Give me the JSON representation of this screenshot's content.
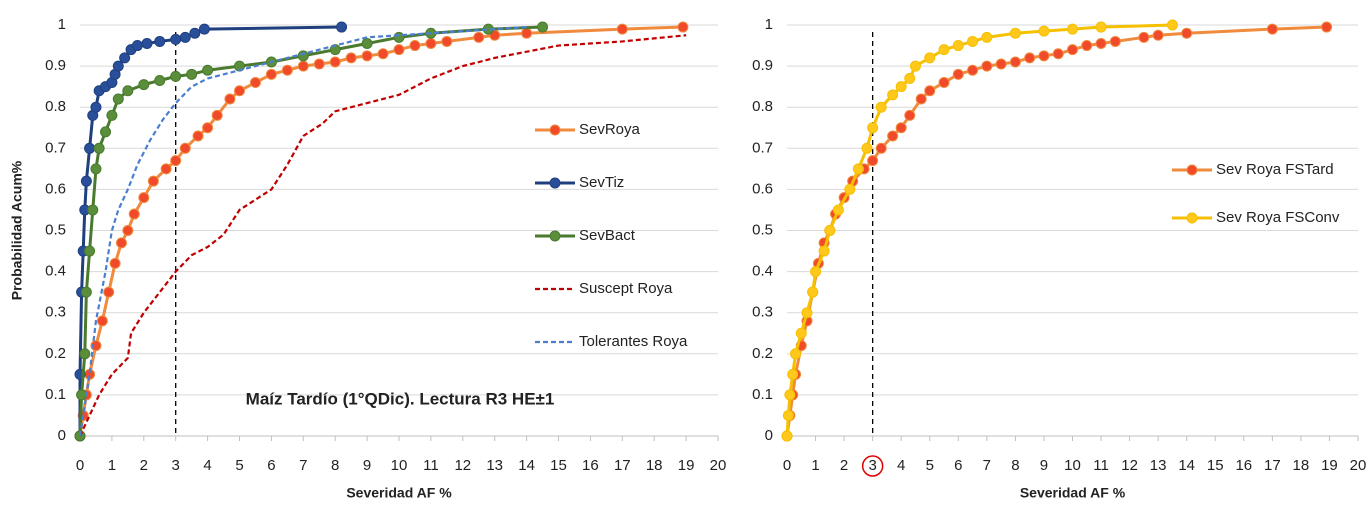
{
  "chart_data": [
    {
      "type": "line",
      "x_label": "Severidad AF %",
      "y_label": "Probabilidad Acum%",
      "annotation": "Maíz Tardío (1°QDic). Lectura R3 HE±1",
      "reference_line_x": 3,
      "grid": true,
      "legend": "right",
      "xlim": [
        0,
        20
      ],
      "xticks": [
        0,
        1,
        2,
        3,
        4,
        5,
        6,
        7,
        8,
        9,
        10,
        11,
        12,
        13,
        14,
        15,
        16,
        17,
        18,
        19,
        20
      ],
      "ylim": [
        0,
        1
      ],
      "yticks": [
        0,
        0.1,
        0.2,
        0.3,
        0.4,
        0.5,
        0.6,
        0.7,
        0.8,
        0.9,
        1
      ],
      "series": [
        {
          "name": "SevRoya",
          "color": "#f08a3c",
          "marker_color": "#f04a2a",
          "line_style": "solid",
          "x": [
            0,
            0.1,
            0.2,
            0.3,
            0.5,
            0.7,
            0.9,
            1.1,
            1.3,
            1.5,
            1.7,
            2,
            2.3,
            2.7,
            3,
            3.3,
            3.7,
            4,
            4.3,
            4.7,
            5,
            5.5,
            6,
            6.5,
            7,
            7.5,
            8,
            8.5,
            9,
            9.5,
            10,
            10.5,
            11,
            11.5,
            12.5,
            13,
            14,
            17,
            18.9
          ],
          "values": [
            0,
            0.05,
            0.1,
            0.15,
            0.22,
            0.28,
            0.35,
            0.42,
            0.47,
            0.5,
            0.54,
            0.58,
            0.62,
            0.65,
            0.67,
            0.7,
            0.73,
            0.75,
            0.78,
            0.82,
            0.84,
            0.86,
            0.88,
            0.89,
            0.9,
            0.905,
            0.91,
            0.92,
            0.925,
            0.93,
            0.94,
            0.95,
            0.955,
            0.96,
            0.97,
            0.975,
            0.98,
            0.99,
            0.995
          ]
        },
        {
          "name": "SevTiz",
          "color": "#1f3f7f",
          "marker_color": "#2a4f9a",
          "line_style": "solid",
          "x": [
            0,
            0,
            0.05,
            0.1,
            0.15,
            0.2,
            0.3,
            0.4,
            0.5,
            0.6,
            0.8,
            1,
            1.1,
            1.2,
            1.4,
            1.6,
            1.8,
            2.1,
            2.5,
            3,
            3.3,
            3.6,
            3.9,
            8.2
          ],
          "values": [
            0,
            0.15,
            0.35,
            0.45,
            0.55,
            0.62,
            0.7,
            0.78,
            0.8,
            0.84,
            0.85,
            0.86,
            0.88,
            0.9,
            0.92,
            0.94,
            0.95,
            0.955,
            0.96,
            0.965,
            0.97,
            0.98,
            0.99,
            0.995
          ]
        },
        {
          "name": "SevBact",
          "color": "#4a7a2e",
          "marker_color": "#5a8e3a",
          "line_style": "solid",
          "x": [
            0,
            0.05,
            0.15,
            0.2,
            0.3,
            0.4,
            0.5,
            0.6,
            0.8,
            1,
            1.2,
            1.5,
            2,
            2.5,
            3,
            3.5,
            4,
            5,
            6,
            7,
            8,
            9,
            10,
            11,
            12.8,
            14.5
          ],
          "values": [
            0,
            0.1,
            0.2,
            0.35,
            0.45,
            0.55,
            0.65,
            0.7,
            0.74,
            0.78,
            0.82,
            0.84,
            0.855,
            0.865,
            0.875,
            0.88,
            0.89,
            0.9,
            0.91,
            0.925,
            0.94,
            0.955,
            0.97,
            0.98,
            0.99,
            0.995
          ]
        },
        {
          "name": "Suscept Roya",
          "color": "#c00000",
          "line_style": "dashed",
          "x": [
            0,
            0.3,
            0.6,
            1,
            1.5,
            1.6,
            2,
            2.5,
            3,
            3.5,
            4,
            4.5,
            5,
            6,
            6.5,
            7,
            7.6,
            8,
            9,
            10,
            11,
            12,
            13,
            15,
            17,
            19
          ],
          "values": [
            0,
            0.05,
            0.1,
            0.15,
            0.19,
            0.25,
            0.3,
            0.35,
            0.4,
            0.44,
            0.46,
            0.49,
            0.55,
            0.6,
            0.66,
            0.73,
            0.76,
            0.79,
            0.81,
            0.83,
            0.87,
            0.9,
            0.92,
            0.95,
            0.96,
            0.975
          ]
        },
        {
          "name": "Tolerantes Roya",
          "color": "#4a7fd0",
          "line_style": "dashed",
          "x": [
            0,
            0.3,
            0.5,
            0.8,
            1,
            1.2,
            1.5,
            1.8,
            2.2,
            2.6,
            3,
            3.5,
            4,
            5,
            6,
            7,
            8,
            9,
            11,
            13,
            14
          ],
          "values": [
            0,
            0.15,
            0.28,
            0.4,
            0.5,
            0.55,
            0.6,
            0.66,
            0.72,
            0.77,
            0.81,
            0.85,
            0.87,
            0.89,
            0.91,
            0.93,
            0.95,
            0.97,
            0.98,
            0.99,
            0.995
          ]
        }
      ]
    },
    {
      "type": "line",
      "x_label": "Severidad AF %",
      "reference_line_x": 3,
      "highlight_xtick": 3,
      "grid": true,
      "legend": "right",
      "xlim": [
        0,
        20
      ],
      "xticks": [
        0,
        1,
        2,
        3,
        4,
        5,
        6,
        7,
        8,
        9,
        10,
        11,
        12,
        13,
        14,
        15,
        16,
        17,
        18,
        19,
        20
      ],
      "ylim": [
        0,
        1
      ],
      "yticks": [
        0,
        0.1,
        0.2,
        0.3,
        0.4,
        0.5,
        0.6,
        0.7,
        0.8,
        0.9,
        1
      ],
      "series": [
        {
          "name": "Sev Roya FSTard",
          "color": "#f08a3c",
          "marker_color": "#f04a2a",
          "line_style": "solid",
          "x": [
            0,
            0.1,
            0.2,
            0.3,
            0.5,
            0.7,
            0.9,
            1.1,
            1.3,
            1.5,
            1.7,
            2,
            2.3,
            2.7,
            3,
            3.3,
            3.7,
            4,
            4.3,
            4.7,
            5,
            5.5,
            6,
            6.5,
            7,
            7.5,
            8,
            8.5,
            9,
            9.5,
            10,
            10.5,
            11,
            11.5,
            12.5,
            13,
            14,
            17,
            18.9
          ],
          "values": [
            0,
            0.05,
            0.1,
            0.15,
            0.22,
            0.28,
            0.35,
            0.42,
            0.47,
            0.5,
            0.54,
            0.58,
            0.62,
            0.65,
            0.67,
            0.7,
            0.73,
            0.75,
            0.78,
            0.82,
            0.84,
            0.86,
            0.88,
            0.89,
            0.9,
            0.905,
            0.91,
            0.92,
            0.925,
            0.93,
            0.94,
            0.95,
            0.955,
            0.96,
            0.97,
            0.975,
            0.98,
            0.99,
            0.995
          ]
        },
        {
          "name": "Sev Roya FSConv",
          "color": "#f5c000",
          "marker_color": "#ffc81a",
          "line_style": "solid",
          "x": [
            0,
            0.05,
            0.1,
            0.2,
            0.3,
            0.5,
            0.7,
            0.9,
            1,
            1.3,
            1.5,
            1.8,
            2.2,
            2.5,
            2.8,
            3,
            3.3,
            3.7,
            4,
            4.3,
            4.5,
            5,
            5.5,
            6,
            6.5,
            7,
            8,
            9,
            10,
            11,
            13.5
          ],
          "values": [
            0,
            0.05,
            0.1,
            0.15,
            0.2,
            0.25,
            0.3,
            0.35,
            0.4,
            0.45,
            0.5,
            0.55,
            0.6,
            0.65,
            0.7,
            0.75,
            0.8,
            0.83,
            0.85,
            0.87,
            0.9,
            0.92,
            0.94,
            0.95,
            0.96,
            0.97,
            0.98,
            0.985,
            0.99,
            0.995,
            1
          ]
        }
      ]
    }
  ]
}
